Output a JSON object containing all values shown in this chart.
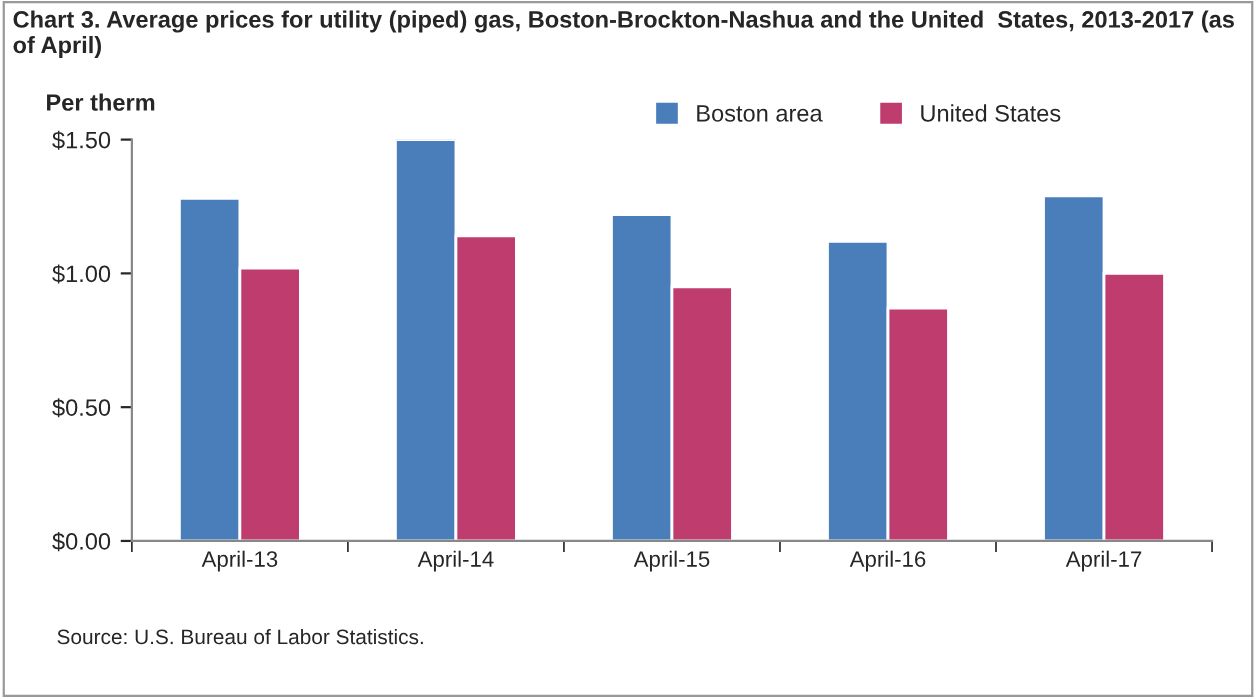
{
  "chart_data": {
    "type": "bar",
    "title": "Chart 3. Average prices for utility (piped) gas, Boston-Brockton-Nashua and the United  States, 2013-2017 (as of April)",
    "ylabel": "Per therm",
    "categories": [
      "April-13",
      "April-14",
      "April-15",
      "April-16",
      "April-17"
    ],
    "series": [
      {
        "name": "Boston area",
        "color": "#4a7ebb",
        "values": [
          1.28,
          1.5,
          1.22,
          1.12,
          1.29
        ]
      },
      {
        "name": "United States",
        "color": "#be3c6e",
        "values": [
          1.02,
          1.14,
          0.95,
          0.87,
          1.0
        ]
      }
    ],
    "ylim": [
      0,
      1.5
    ],
    "yticks": [
      {
        "value": 0,
        "label": "$0.00"
      },
      {
        "value": 0.5,
        "label": "$0.50"
      },
      {
        "value": 1.0,
        "label": "$1.00"
      },
      {
        "value": 1.5,
        "label": "$1.50"
      }
    ],
    "grid": false,
    "legend": "top right",
    "annotations": [
      "Source: U.S. Bureau of Labor Statistics."
    ]
  }
}
